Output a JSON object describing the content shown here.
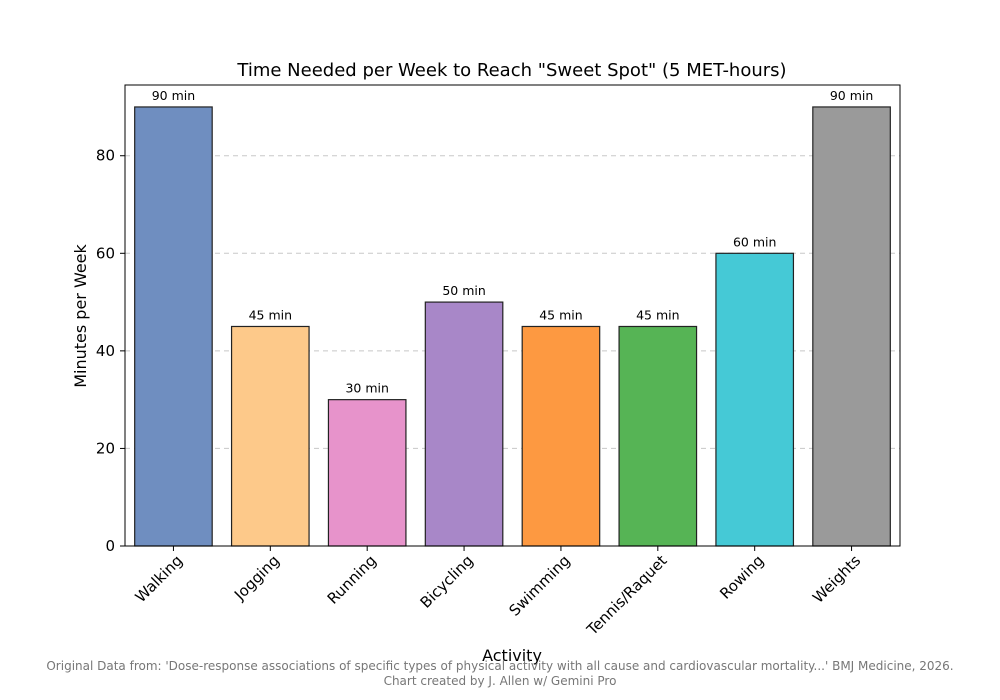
{
  "chart_data": {
    "type": "bar",
    "title": "Time Needed per Week to Reach \"Sweet Spot\" (5 MET-hours)",
    "xlabel": "Activity",
    "ylabel": "Minutes per Week",
    "ylim": [
      0,
      94.5
    ],
    "yticks": [
      0,
      20,
      40,
      60,
      80
    ],
    "grid": "y-dashed",
    "categories": [
      "Walking",
      "Jogging",
      "Running",
      "Bicycling",
      "Swimming",
      "Tennis/Raquet",
      "Rowing",
      "Weights"
    ],
    "values": [
      90,
      45,
      30,
      50,
      45,
      45,
      60,
      90
    ],
    "data_labels": [
      "90 min",
      "45 min",
      "30 min",
      "50 min",
      "45 min",
      "45 min",
      "60 min",
      "90 min"
    ],
    "colors": [
      "#6f8ec0",
      "#fdc98a",
      "#e793cb",
      "#a887c8",
      "#fd9941",
      "#56b455",
      "#45c9d6",
      "#9a9a9a"
    ]
  },
  "footer": {
    "source": "Original Data from: 'Dose-response associations of specific types of physical activity with all cause and cardiovascular mortality...' BMJ Medicine, 2026.",
    "credit": "Chart created by J. Allen w/ Gemini Pro"
  }
}
